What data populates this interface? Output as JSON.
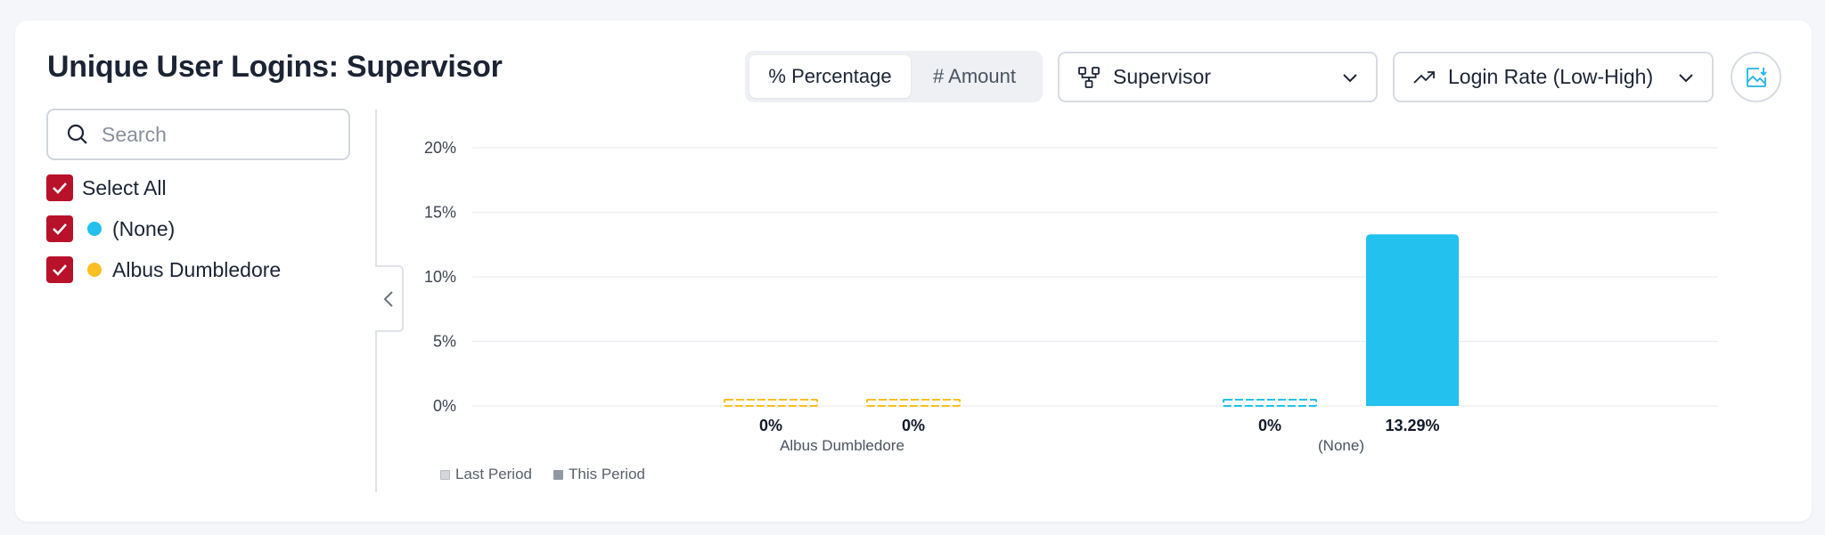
{
  "title": "Unique User Logins: Supervisor",
  "toggle": {
    "percentage": "% Percentage",
    "amount": "# Amount",
    "active": "percentage"
  },
  "group_dropdown": {
    "value": "Supervisor",
    "icon": "hierarchy-icon"
  },
  "sort_dropdown": {
    "value": "Login Rate (Low-High)",
    "icon": "trend-up-icon"
  },
  "export_icon": "image-download-icon",
  "search": {
    "placeholder": "Search",
    "value": ""
  },
  "filters": [
    {
      "label": "Select All",
      "checked": true
    },
    {
      "label": "(None)",
      "checked": true,
      "color": "#22c1ee"
    },
    {
      "label": "Albus Dumbledore",
      "checked": true,
      "color": "#fbbf24"
    }
  ],
  "colors": {
    "accent": "#b8112a",
    "none_series": "#22c1ee",
    "albus_series": "#fbbf24"
  },
  "chart_data": {
    "type": "bar",
    "categories": [
      "Albus Dumbledore",
      "(None)"
    ],
    "category_colors": [
      "#fbbf24",
      "#22c1ee"
    ],
    "series": [
      {
        "name": "Last Period",
        "values": [
          0,
          0
        ],
        "labels": [
          "0%",
          "0%"
        ],
        "style": "dashed-outline"
      },
      {
        "name": "This Period",
        "values": [
          0,
          13.29
        ],
        "labels": [
          "0%",
          "13.29%"
        ],
        "style": "solid"
      }
    ],
    "y_ticks": [
      "0%",
      "5%",
      "10%",
      "15%",
      "20%"
    ],
    "ylim": [
      0,
      20
    ],
    "unit": "%",
    "grid": true,
    "legend_position": "bottom-left",
    "legend": [
      {
        "label": "Last Period",
        "color": "#d4d6da"
      },
      {
        "label": "This Period",
        "color": "#9298a3"
      }
    ]
  }
}
